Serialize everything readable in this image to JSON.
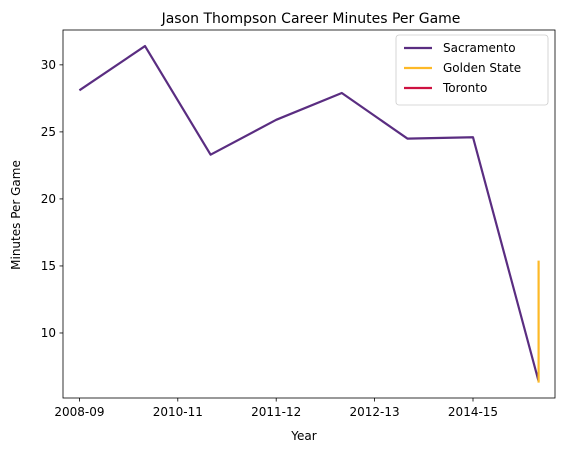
{
  "chart_data": {
    "type": "line",
    "title": "Jason Thompson  Career Minutes Per Game",
    "xlabel": "Year",
    "ylabel": "Minutes Per Game",
    "x_index_range": [
      -0.25,
      7.25
    ],
    "ylim": [
      5.15,
      32.6
    ],
    "x_ticks": [
      {
        "label": "2008-09",
        "pos": 0
      },
      {
        "label": "2010-11",
        "pos": 1.5
      },
      {
        "label": "2011-12",
        "pos": 3
      },
      {
        "label": "2012-13",
        "pos": 4.5
      },
      {
        "label": "2014-15",
        "pos": 6
      }
    ],
    "y_ticks": [
      10,
      15,
      20,
      25,
      30
    ],
    "legend_position": "top-right",
    "series": [
      {
        "name": "Sacramento",
        "color": "#5a2d81",
        "points": [
          {
            "x": 0,
            "y": 28.1
          },
          {
            "x": 1,
            "y": 31.4
          },
          {
            "x": 2,
            "y": 23.3
          },
          {
            "x": 3,
            "y": 25.9
          },
          {
            "x": 4,
            "y": 27.9
          },
          {
            "x": 5,
            "y": 24.5
          },
          {
            "x": 6,
            "y": 24.6
          },
          {
            "x": 7,
            "y": 6.4
          }
        ]
      },
      {
        "name": "Golden State",
        "color": "#fdb927",
        "points": [
          {
            "x": 7,
            "y": 15.4
          },
          {
            "x": 7,
            "y": 6.3
          }
        ]
      },
      {
        "name": "Toronto",
        "color": "#ce1141",
        "points": []
      }
    ]
  }
}
